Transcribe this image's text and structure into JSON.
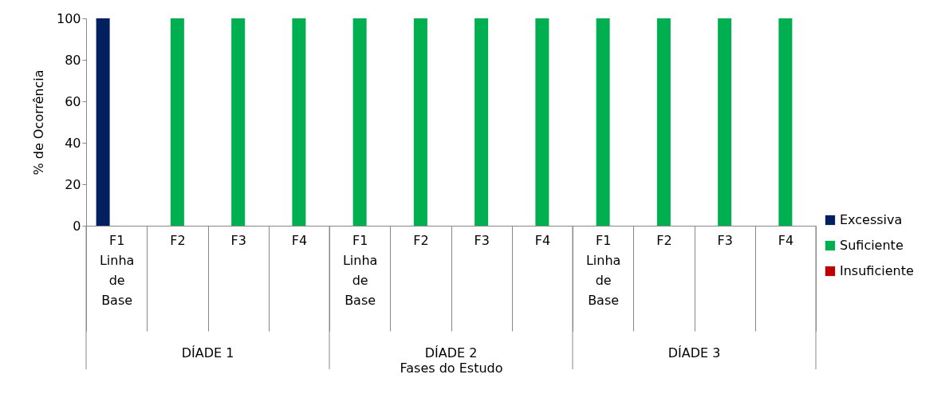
{
  "chart_data": {
    "type": "bar",
    "ylabel": "% de Ocorrência",
    "xlabel": "Fases do Estudo",
    "categories": [
      "F1 Linha de Base",
      "F2",
      "F3",
      "F4",
      "F1 Linha de Base",
      "F2",
      "F3",
      "F4",
      "F1 Linha de Base",
      "F2",
      "F3",
      "F4"
    ],
    "series": [
      {
        "name": "Excessiva",
        "color": "#002060",
        "values": [
          100,
          0,
          0,
          0,
          0,
          0,
          0,
          0,
          0,
          0,
          0,
          0
        ]
      },
      {
        "name": "Suficiente",
        "color": "#00b050",
        "values": [
          0,
          100,
          100,
          100,
          100,
          100,
          100,
          100,
          100,
          100,
          100,
          100
        ]
      },
      {
        "name": "Insuficiente",
        "color": "#c00000",
        "values": [
          0,
          0,
          0,
          0,
          0,
          0,
          0,
          0,
          0,
          0,
          0,
          0
        ]
      }
    ],
    "annotations": [
      "DÍADE 1",
      "DÍADE 2",
      "DÍADE 3"
    ],
    "ylim": [
      0,
      100
    ],
    "yticks": [
      0,
      20,
      40,
      60,
      80,
      100
    ],
    "legend": "bottom right",
    "grid": false
  }
}
